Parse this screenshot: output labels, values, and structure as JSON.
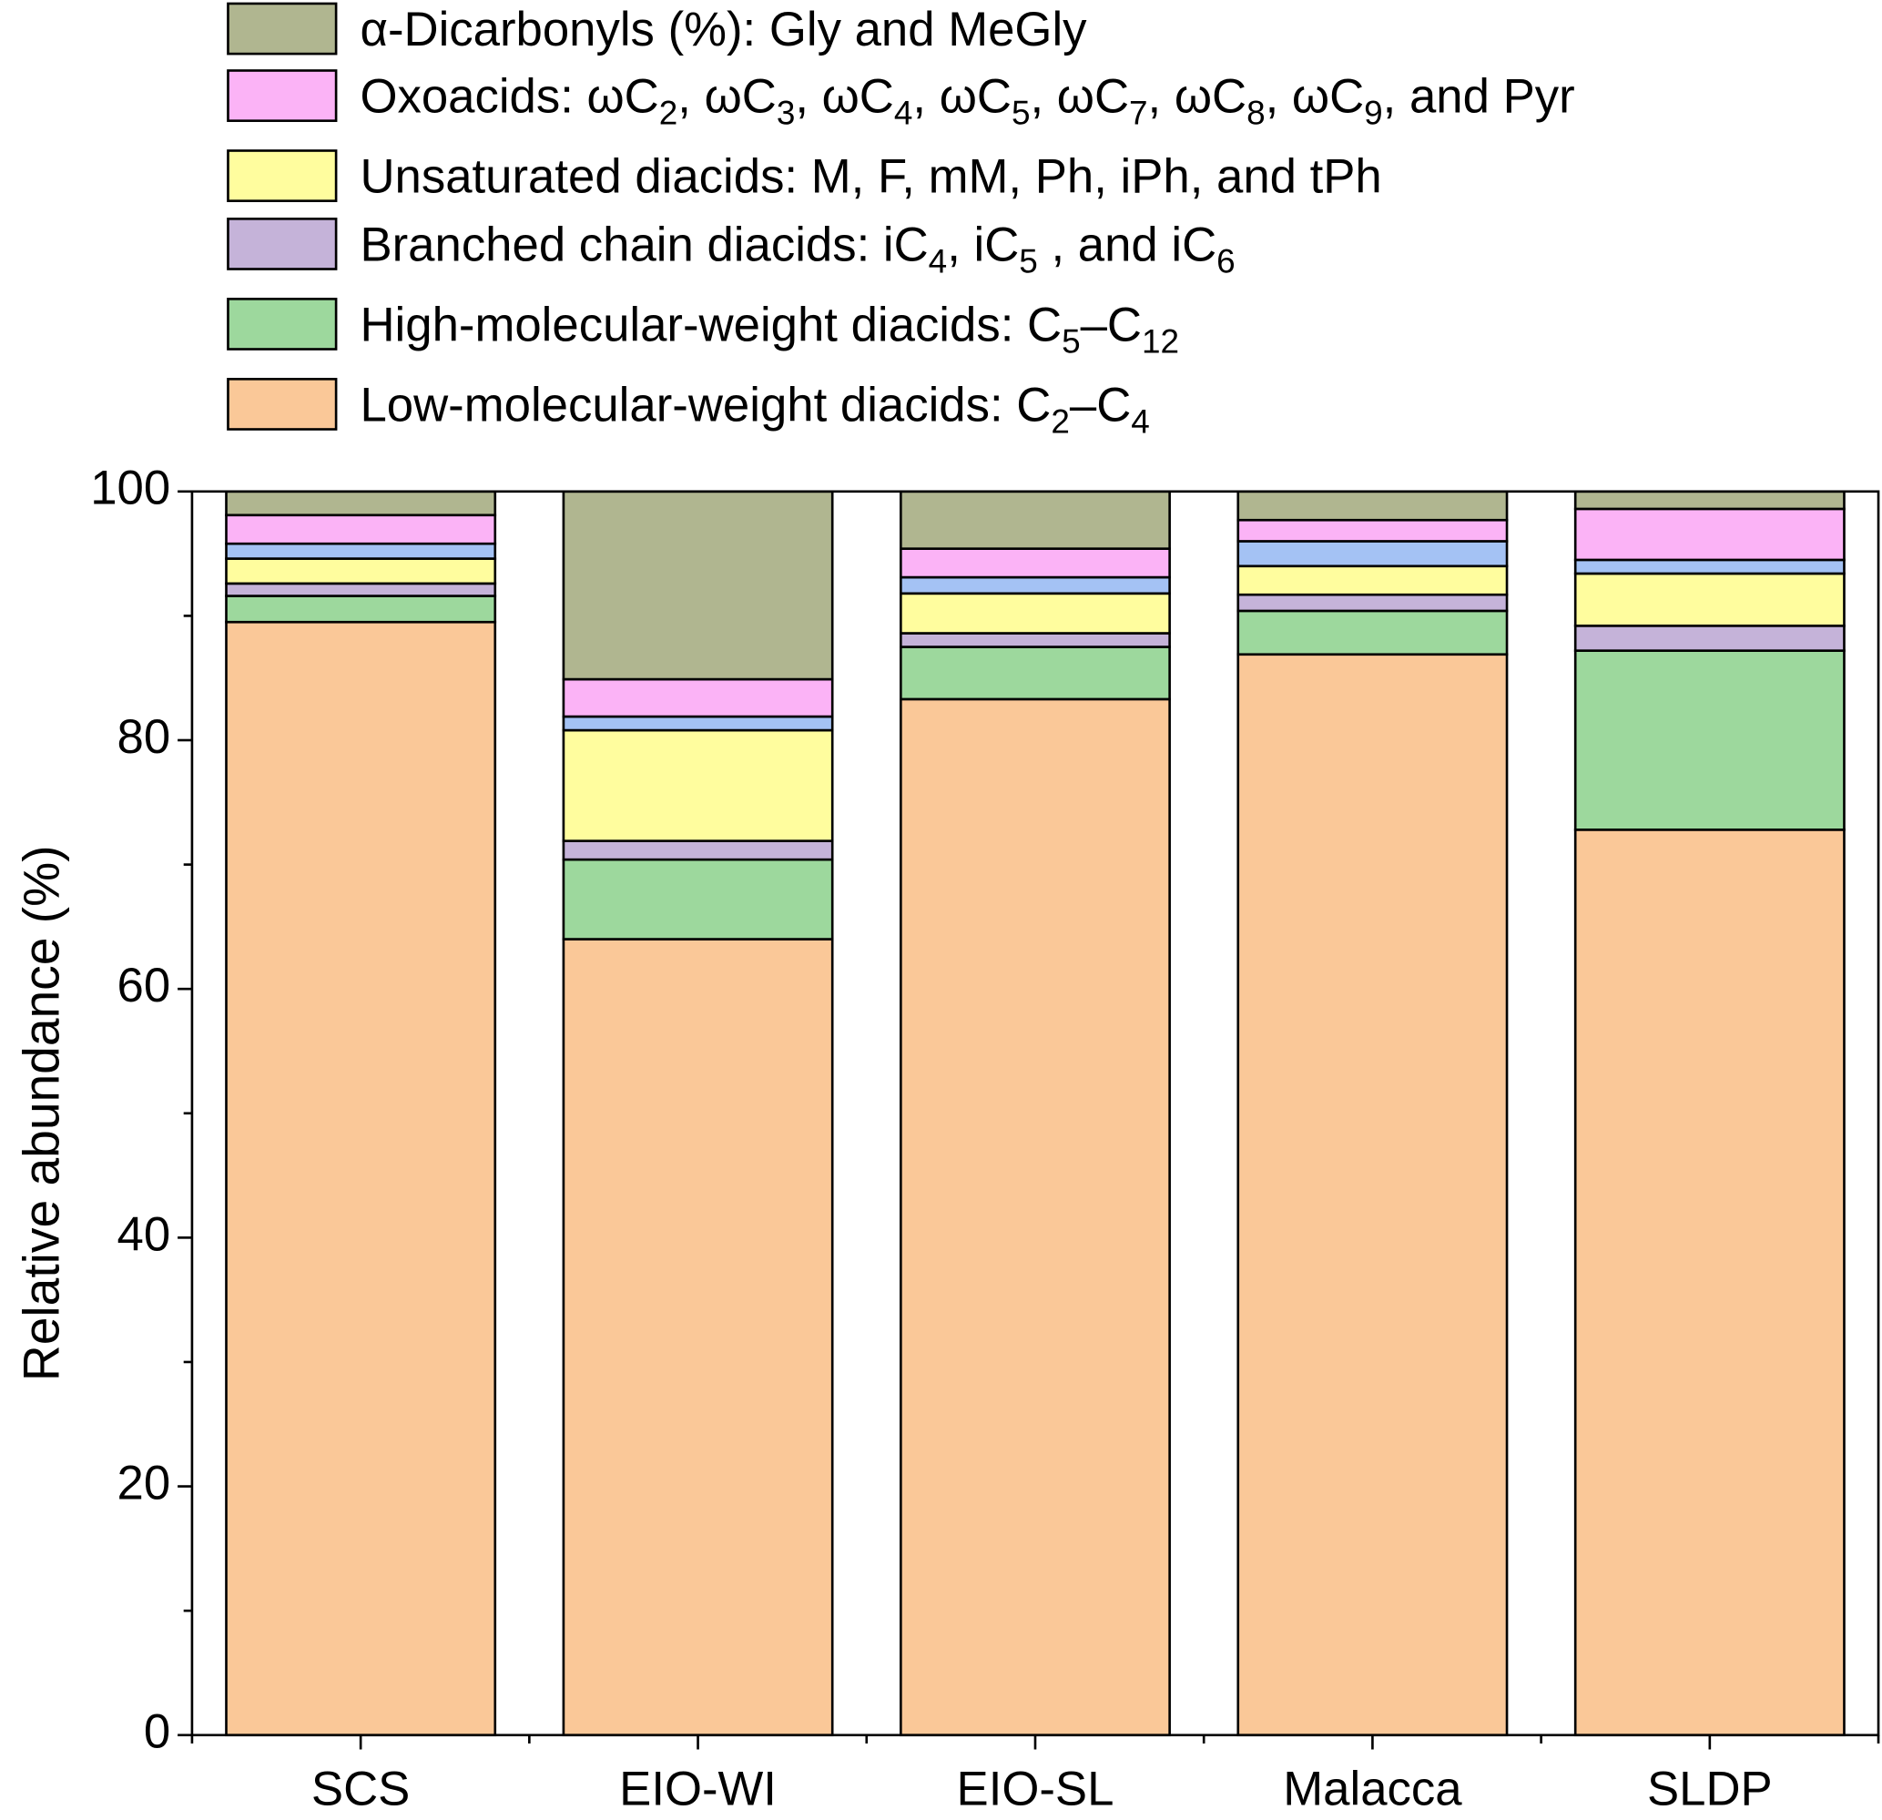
{
  "chart_data": {
    "type": "stacked-bar",
    "y_label": "Relative abundance (%)",
    "categories": [
      "SCS",
      "EIO-WI",
      "EIO-SL",
      "Malacca",
      "SLDP"
    ],
    "ylim": [
      0,
      100
    ],
    "yticks": [
      0,
      20,
      40,
      60,
      80,
      100
    ],
    "series": [
      {
        "name": "Low-molecular-weight diacids: C2–C4",
        "color": "#fac898",
        "values": [
          89.5,
          64.0,
          83.3,
          86.9,
          72.8
        ]
      },
      {
        "name": "High-molecular-weight diacids: C5–C12",
        "color": "#9dd89d",
        "values": [
          2.1,
          6.4,
          4.2,
          3.5,
          14.4
        ]
      },
      {
        "name": "Branched chain diacids: iC4, iC5 , and iC6",
        "color": "#c5b3d9",
        "values": [
          1.0,
          1.5,
          1.1,
          1.3,
          2.0
        ]
      },
      {
        "name": "Unsaturated diacids: M, F, mM, Ph, iPh, and tPh",
        "color": "#fffd9e",
        "values": [
          2.0,
          8.9,
          3.2,
          2.3,
          4.2
        ]
      },
      {
        "color": "#a4c2f4",
        "values": [
          1.2,
          1.1,
          1.3,
          2.0,
          1.1
        ]
      },
      {
        "name": "Oxoacids: ωC2, ωC3, ωC4, ωC5, ωC7, ωC8, ωC9, and Pyr",
        "color": "#fbb3f6",
        "values": [
          2.3,
          3.0,
          2.3,
          1.7,
          4.1
        ]
      },
      {
        "name": "α-Dicarbonyls (%): Gly and MeGly",
        "color": "#b0b690",
        "values": [
          1.9,
          15.1,
          4.6,
          2.3,
          1.4
        ]
      }
    ]
  }
}
